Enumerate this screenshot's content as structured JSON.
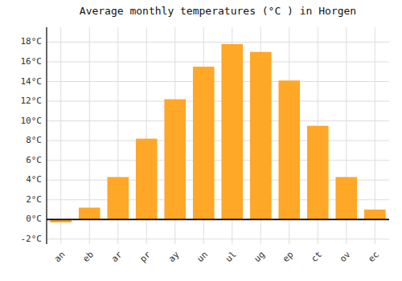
{
  "chart_data": {
    "type": "bar",
    "title": "Average monthly temperatures (°C ) in Horgen",
    "categories": [
      "an",
      "eb",
      "ar",
      "pr",
      "ay",
      "un",
      "ul",
      "ug",
      "ep",
      "ct",
      "ov",
      "ec"
    ],
    "values": [
      -0.3,
      1.2,
      4.3,
      8.2,
      12.2,
      15.5,
      17.8,
      17.0,
      14.1,
      9.5,
      4.3,
      1.0
    ],
    "color": "#FFA726",
    "ylim": [
      -2.5,
      19.5
    ],
    "yticks": [
      {
        "value": -2,
        "label": "-2°C"
      },
      {
        "value": 0,
        "label": "0°C"
      },
      {
        "value": 2,
        "label": "2°C"
      },
      {
        "value": 4,
        "label": "4°C"
      },
      {
        "value": 6,
        "label": "6°C"
      },
      {
        "value": 8,
        "label": "8°C"
      },
      {
        "value": 10,
        "label": "10°C"
      },
      {
        "value": 12,
        "label": "12°C"
      },
      {
        "value": 14,
        "label": "14°C"
      },
      {
        "value": 16,
        "label": "16°C"
      },
      {
        "value": 18,
        "label": "18°C"
      }
    ],
    "grid": true
  }
}
